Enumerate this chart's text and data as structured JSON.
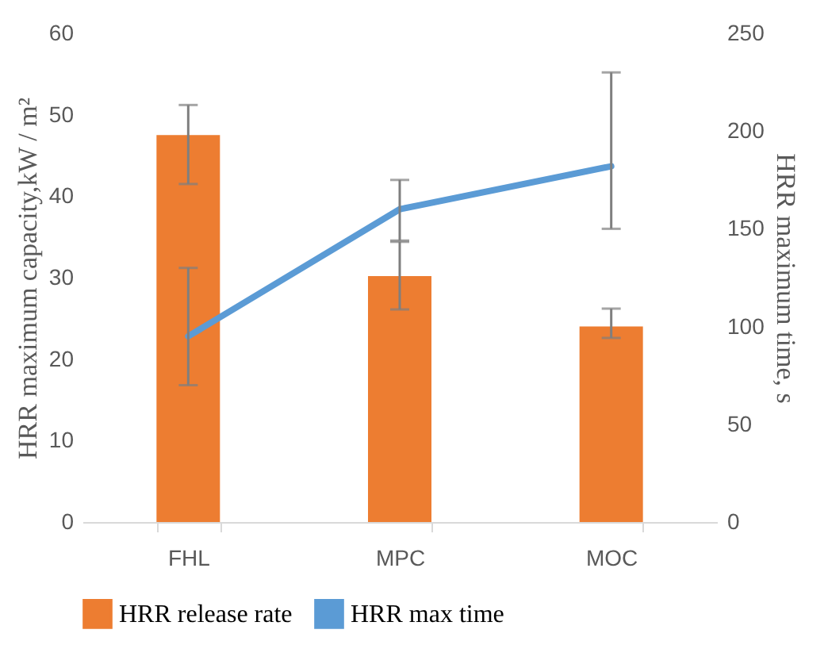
{
  "chart_data": {
    "type": "bar",
    "ylabel": "HRR maximum capacity,kW / m²",
    "y2label": "HRR maximum time, s",
    "categories": [
      "FHL",
      "MPC",
      "MOC"
    ],
    "series": [
      {
        "name": "HRR release rate",
        "color": "#ed7d31",
        "values": [
          47.5,
          30.2,
          24.0
        ],
        "errors": [
          [
            41.5,
            51.2
          ],
          [
            26.1,
            34.4
          ],
          [
            22.6,
            26.2
          ]
        ]
      },
      {
        "name": "HRR max time",
        "type": "line",
        "axis": "y2",
        "color": "#5b9bd5",
        "values": [
          95,
          160,
          182
        ],
        "errors": [
          [
            70,
            130
          ],
          [
            144,
            175
          ],
          [
            150,
            230
          ]
        ]
      }
    ],
    "ylim": [
      0,
      60
    ],
    "yticks": [
      0,
      10,
      20,
      30,
      40,
      50,
      60
    ],
    "y2lim": [
      0,
      250
    ],
    "y2ticks": [
      0,
      50,
      100,
      150,
      200,
      250
    ],
    "legend": "bottom"
  }
}
